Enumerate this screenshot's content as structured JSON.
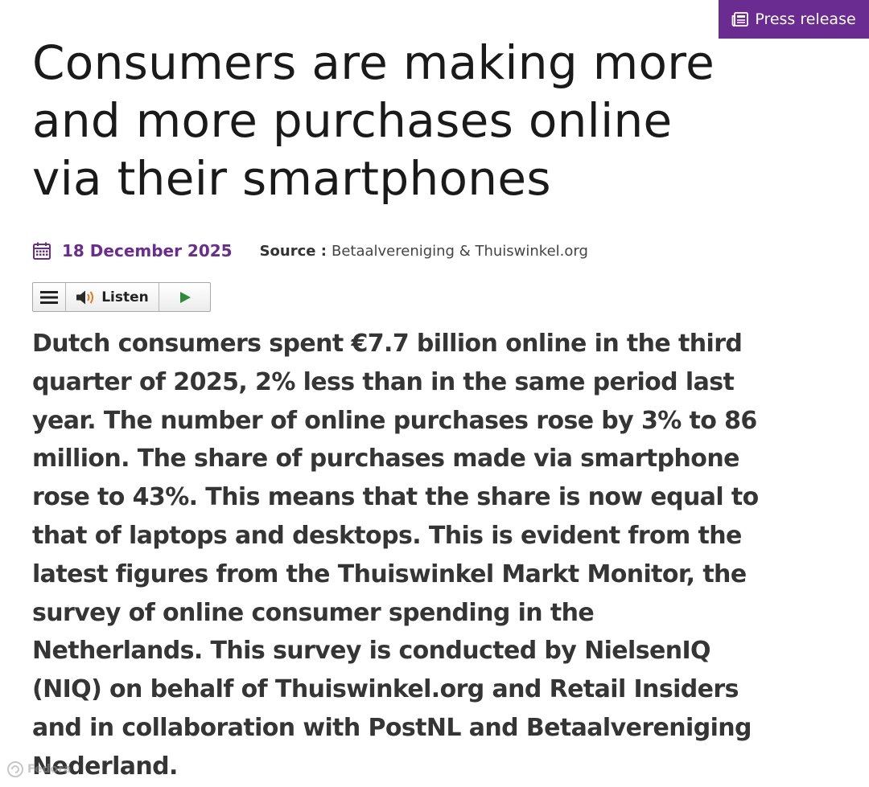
{
  "badge": {
    "label": "Press release",
    "icon": "newspaper-icon",
    "color": "#6a2c91"
  },
  "article": {
    "title": "Consumers are making more and more purchases online via their smartphones",
    "date": "18 December 2025",
    "date_icon": "calendar-icon",
    "source_label": "Source :",
    "source_value": "Betaalvereniging & Thuiswinkel.org",
    "lead": "Dutch consumers spent €7.7 billion online in the third quarter of 2025, 2% less than in the same period last year. The number of online purchases rose by 3% to 86 million. The share of purchases made via smartphone rose to 43%. This means that the share is now equal to that of laptops and desktops. This is evident from the latest figures from the Thuiswinkel Markt Monitor, the survey of online consumer spending in the Netherlands. This survey is conducted by NielsenIQ (NIQ) on behalf of Thuiswinkel.org and Retail Insiders and in collaboration with PostNL and Betaalvereniging Nederland."
  },
  "player": {
    "menu_icon": "hamburger-menu-icon",
    "speaker_icon": "speaker-icon",
    "listen_label": "Listen",
    "play_icon": "play-icon",
    "play_color": "#2e8b3a"
  },
  "watermark": {
    "label": "Fedora",
    "icon": "watermark-logo-icon"
  }
}
